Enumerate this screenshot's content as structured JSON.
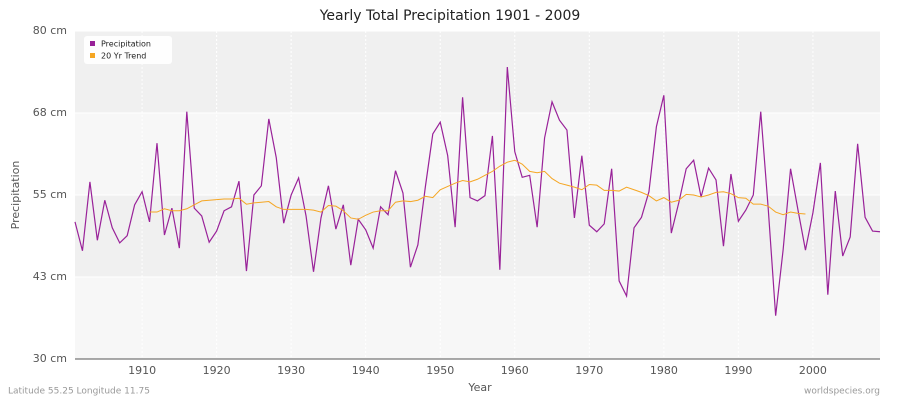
{
  "chart_data": {
    "type": "line",
    "title": "Yearly Total Precipitation 1901 - 2009",
    "xlabel": "Year",
    "ylabel": "Precipitation",
    "footer_left": "Latitude 55.25 Longitude 11.75",
    "footer_right": "worldspecies.org",
    "x": [
      1901,
      1902,
      1903,
      1904,
      1905,
      1906,
      1907,
      1908,
      1909,
      1910,
      1911,
      1912,
      1913,
      1914,
      1915,
      1916,
      1917,
      1918,
      1919,
      1920,
      1921,
      1922,
      1923,
      1924,
      1925,
      1926,
      1927,
      1928,
      1929,
      1930,
      1931,
      1932,
      1933,
      1934,
      1935,
      1936,
      1937,
      1938,
      1939,
      1940,
      1941,
      1942,
      1943,
      1944,
      1945,
      1946,
      1947,
      1948,
      1949,
      1950,
      1951,
      1952,
      1953,
      1954,
      1955,
      1956,
      1957,
      1958,
      1959,
      1960,
      1961,
      1962,
      1963,
      1964,
      1965,
      1966,
      1967,
      1968,
      1969,
      1970,
      1971,
      1972,
      1973,
      1974,
      1975,
      1976,
      1977,
      1978,
      1979,
      1980,
      1981,
      1982,
      1983,
      1984,
      1985,
      1986,
      1987,
      1988,
      1989,
      1990,
      1991,
      1992,
      1993,
      1994,
      1995,
      1996,
      1997,
      1998,
      1999,
      2000,
      2001,
      2002,
      2003,
      2004,
      2005,
      2006,
      2007,
      2008,
      2009
    ],
    "series": [
      {
        "name": "Precipitation",
        "color": "#992299",
        "values": [
          50.9,
          46.5,
          57.0,
          48.1,
          54.2,
          50.0,
          47.7,
          48.8,
          53.5,
          55.5,
          50.9,
          62.9,
          48.9,
          53.0,
          46.9,
          67.7,
          53.0,
          51.8,
          47.8,
          49.5,
          52.6,
          53.2,
          57.1,
          43.4,
          55.0,
          56.4,
          66.6,
          60.7,
          50.7,
          55.0,
          57.6,
          51.8,
          43.3,
          51.5,
          56.4,
          49.8,
          53.5,
          44.3,
          51.3,
          49.7,
          46.9,
          53.2,
          52.0,
          58.7,
          55.3,
          44.0,
          47.4,
          56.2,
          64.3,
          66.1,
          61.0,
          50.1,
          69.9,
          54.6,
          54.1,
          54.9,
          64.0,
          43.6,
          74.5,
          61.6,
          57.7,
          58.0,
          50.1,
          63.7,
          69.2,
          66.4,
          64.9,
          51.5,
          61.0,
          50.4,
          49.4,
          50.6,
          59.0,
          41.9,
          39.6,
          50.0,
          51.6,
          55.5,
          65.4,
          70.2,
          49.2,
          53.8,
          59.0,
          60.3,
          54.7,
          59.1,
          57.3,
          47.2,
          58.2,
          51.0,
          52.7,
          55.0,
          67.7,
          53.0,
          36.6,
          46.6,
          59.0,
          52.7,
          46.6,
          52.3,
          59.9,
          39.8,
          55.6,
          45.7,
          48.6,
          62.8,
          51.6,
          49.5,
          49.4
        ]
      },
      {
        "name": "20 Yr Trend",
        "color": "#f5a623",
        "values": [
          null,
          null,
          null,
          null,
          null,
          null,
          null,
          null,
          null,
          null,
          52.4,
          52.4,
          52.9,
          52.6,
          52.6,
          52.9,
          53.5,
          54.1,
          54.2,
          54.3,
          54.4,
          54.4,
          54.5,
          53.6,
          53.8,
          53.9,
          54.0,
          53.2,
          52.8,
          52.8,
          52.8,
          52.8,
          52.7,
          52.4,
          53.4,
          53.3,
          52.6,
          51.5,
          51.3,
          51.9,
          52.4,
          52.6,
          52.6,
          53.9,
          54.1,
          54.0,
          54.2,
          54.8,
          54.6,
          55.8,
          56.3,
          56.8,
          57.2,
          57.0,
          57.4,
          58.0,
          58.6,
          59.4,
          60.0,
          60.3,
          59.7,
          58.6,
          58.4,
          58.6,
          57.5,
          56.8,
          56.5,
          56.2,
          55.8,
          56.6,
          56.5,
          55.7,
          55.7,
          55.6,
          56.2,
          55.8,
          55.4,
          54.9,
          54.1,
          54.6,
          53.9,
          54.2,
          55.1,
          55.0,
          54.7,
          55.0,
          55.4,
          55.5,
          55.2,
          54.6,
          54.5,
          53.6,
          53.6,
          53.3,
          52.4,
          52.0,
          52.4,
          52.2,
          52.1,
          null,
          null,
          null,
          null,
          null,
          null,
          null,
          null,
          null,
          null
        ]
      }
    ],
    "xlim": [
      1901,
      2009
    ],
    "xticks": [
      1910,
      1920,
      1930,
      1940,
      1950,
      1960,
      1970,
      1980,
      1990,
      2000
    ],
    "ylim": [
      30,
      80
    ],
    "yticks": [
      {
        "value": 30,
        "label": "30 cm"
      },
      {
        "value": 42.5,
        "label": "43 cm"
      },
      {
        "value": 55,
        "label": "55 cm"
      },
      {
        "value": 67.5,
        "label": "68 cm"
      },
      {
        "value": 80,
        "label": "80 cm"
      }
    ],
    "grid": true,
    "legend": "top-left"
  }
}
